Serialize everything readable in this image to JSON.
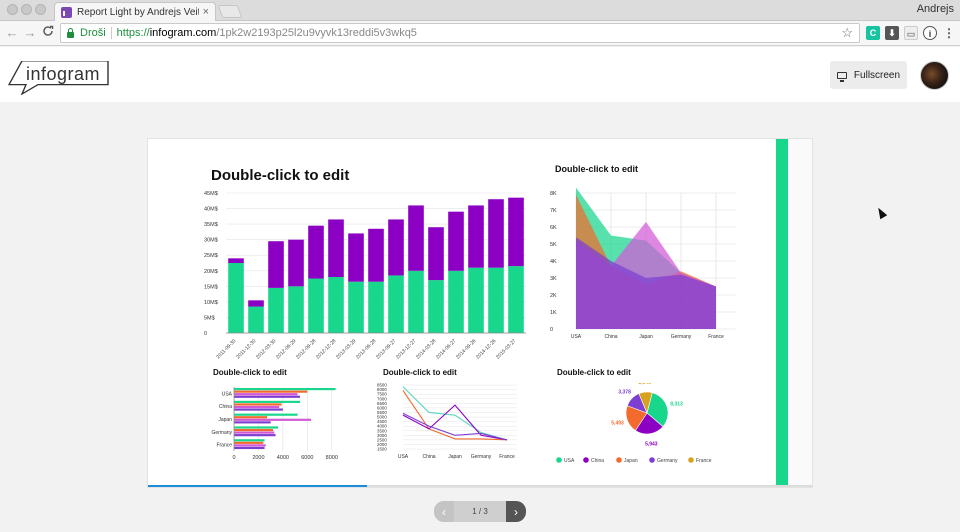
{
  "browser": {
    "tab_title": "Report Light by Andrejs Veitne",
    "tab_close": "×",
    "profile_name": "Andrejs",
    "secure_label": "Droši",
    "url_scheme": "https://",
    "url_host": "infogram.com",
    "url_path": "/1pk2w2193p25l2u9vyvk13reddi5v3wkq5",
    "nav_back": "←",
    "nav_forward": "→",
    "nav_reload": "C",
    "star": "☆"
  },
  "header": {
    "logo_text": "infogram",
    "fullscreen_label": "Fullscreen"
  },
  "pager": {
    "prev": "‹",
    "next": "›",
    "count": "1 / 3"
  },
  "progress": 0.33,
  "colors": {
    "green": "#18d68c",
    "purple": "#8c00c4",
    "orange": "#f36b2c",
    "violet": "#7d3fd1",
    "gold": "#d8a21e",
    "cyan_line": "#5ad6c0",
    "blue": "#1c8ddb"
  },
  "charts": [
    {
      "type": "bar",
      "stacked": true,
      "title": "Double-click to edit",
      "categories": [
        "2011-09-30",
        "2011-12-30",
        "2012-03-30",
        "2012-06-29",
        "2012-09-28",
        "2012-12-28",
        "2013-03-29",
        "2013-06-28",
        "2013-09-27",
        "2013-12-27",
        "2014-03-28",
        "2014-06-27",
        "2014-09-26",
        "2014-12-26",
        "2015-03-27"
      ],
      "series": [
        {
          "color": "#18d68c",
          "values": [
            22.5,
            8.5,
            14.5,
            15,
            17.5,
            18,
            16.5,
            16.5,
            18.5,
            20,
            17,
            20,
            21,
            21,
            21.5
          ]
        },
        {
          "color": "#8c00c4",
          "values": [
            1.5,
            2,
            15,
            15,
            17,
            18.5,
            15.5,
            17,
            18,
            21,
            17,
            19,
            20,
            22,
            22
          ]
        }
      ],
      "yticks": [
        "0",
        "5M$",
        "10M$",
        "15M$",
        "20M$",
        "25M$",
        "30M$",
        "35M$",
        "40M$",
        "45M$"
      ],
      "ylim": [
        0,
        45
      ]
    },
    {
      "type": "area",
      "title": "Double-click to edit",
      "categories": [
        "USA",
        "China",
        "Japan",
        "Germany",
        "France"
      ],
      "series": [
        {
          "color": "#18d68c",
          "values": [
            8313,
            5500,
            5200,
            3300,
            2500
          ]
        },
        {
          "color": "#f36b2c",
          "values": [
            7900,
            3700,
            2600,
            3400,
            2500
          ]
        },
        {
          "color": "#d25ad8",
          "values": [
            5200,
            3700,
            6300,
            3300,
            2500
          ]
        },
        {
          "color": "#7d3fd1",
          "values": [
            5400,
            4000,
            3000,
            3200,
            2500
          ]
        }
      ],
      "yticks": [
        "0",
        "1K",
        "2K",
        "3K",
        "4K",
        "5K",
        "6K",
        "7K",
        "8K"
      ],
      "ylim": [
        0,
        8000
      ]
    },
    {
      "type": "bar",
      "orientation": "horizontal",
      "title": "Double-click to edit",
      "categories": [
        "USA",
        "China",
        "Japan",
        "Germany",
        "France"
      ],
      "series": [
        {
          "color": "#18d68c",
          "values": [
            8313,
            5400,
            5200,
            3600,
            2500
          ]
        },
        {
          "color": "#f36b2c",
          "values": [
            6000,
            3900,
            2700,
            3200,
            2400
          ]
        },
        {
          "color": "#d25ad8",
          "values": [
            5200,
            3700,
            6300,
            3300,
            2600
          ]
        },
        {
          "color": "#7d3fd1",
          "values": [
            5400,
            4000,
            3000,
            3400,
            2500
          ]
        }
      ],
      "xticks": [
        "0",
        "2000",
        "4000",
        "6000",
        "8000"
      ],
      "xlim": [
        0,
        9000
      ]
    },
    {
      "type": "line",
      "title": "Double-click to edit",
      "categories": [
        "USA",
        "China",
        "Japan",
        "Germany",
        "France"
      ],
      "series": [
        {
          "color": "#5ad6c0",
          "values": [
            8313,
            5500,
            5200,
            3300,
            2500
          ]
        },
        {
          "color": "#f36b2c",
          "values": [
            7900,
            3700,
            2600,
            2600,
            2500
          ]
        },
        {
          "color": "#8c00c4",
          "values": [
            5200,
            3700,
            6300,
            3000,
            2500
          ]
        },
        {
          "color": "#7d3fd1",
          "values": [
            5400,
            4000,
            3000,
            3200,
            2500
          ]
        }
      ],
      "yticks": [
        "1500",
        "2000",
        "2500",
        "3000",
        "3500",
        "4000",
        "4500",
        "5000",
        "5500",
        "6000",
        "6500",
        "7000",
        "7500",
        "8000",
        "8500"
      ],
      "ylim": [
        1500,
        8500
      ]
    },
    {
      "type": "pie",
      "title": "Double-click to edit",
      "slices": [
        {
          "label": "USA",
          "value": 8313,
          "color": "#18d68c"
        },
        {
          "label": "China",
          "value": 5943,
          "color": "#8c00c4"
        },
        {
          "label": "Japan",
          "value": 5493,
          "color": "#f36b2c"
        },
        {
          "label": "Germany",
          "value": 3378,
          "color": "#7d3fd1"
        },
        {
          "label": "France",
          "value": 2645,
          "color": "#d8a21e"
        }
      ],
      "value_labels": [
        "8,313",
        "5,943",
        "5,493",
        "3,378",
        "2,645"
      ]
    }
  ]
}
